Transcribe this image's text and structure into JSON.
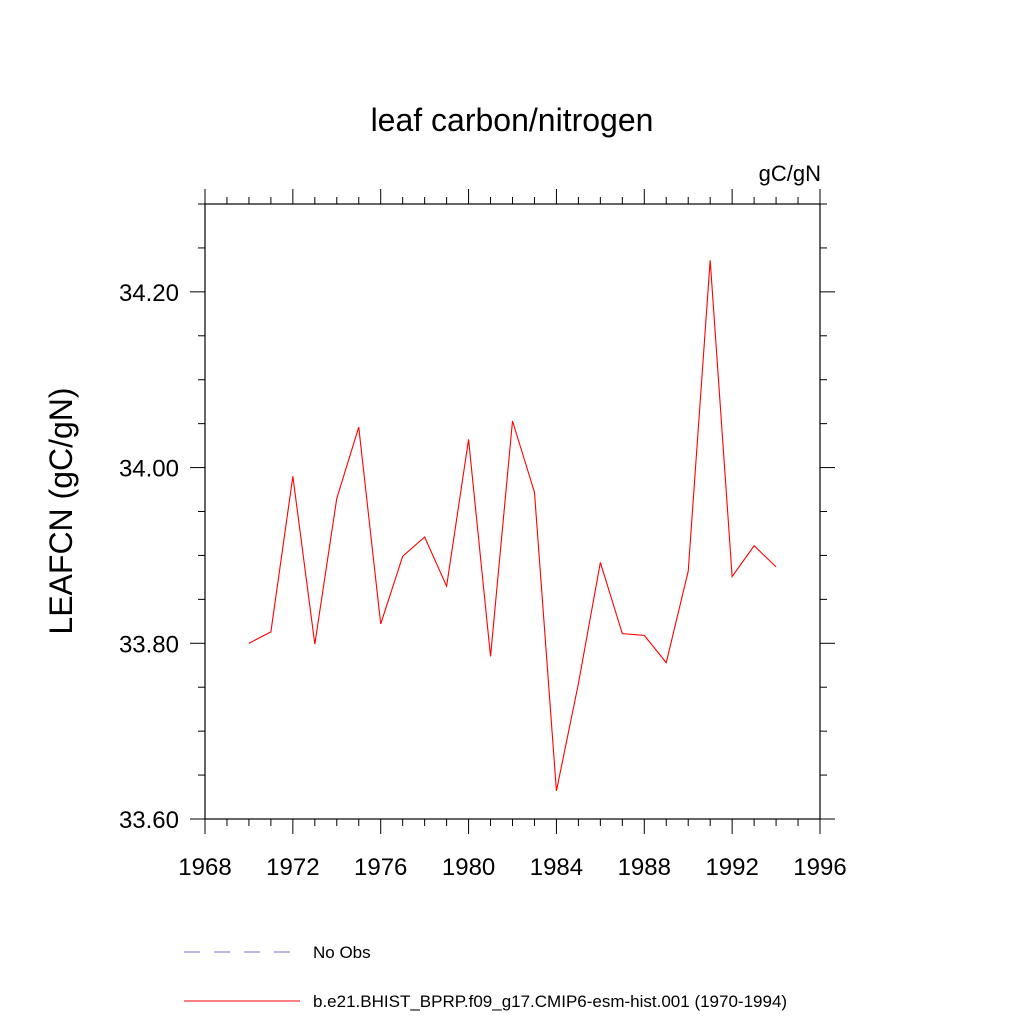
{
  "chart_data": {
    "type": "line",
    "title": "leaf carbon/nitrogen",
    "units_label": "gC/gN",
    "ylabel": "LEAFCN  (gC/gN)",
    "xlabel": "",
    "xlim": [
      1968,
      1996
    ],
    "ylim": [
      33.6,
      34.3
    ],
    "x_major_ticks": [
      1968,
      1972,
      1976,
      1980,
      1984,
      1988,
      1992,
      1996
    ],
    "x_tick_labels": [
      "1968",
      "1972",
      "1976",
      "1980",
      "1984",
      "1988",
      "1992",
      "1996"
    ],
    "y_major_ticks": [
      33.6,
      33.8,
      34.0,
      34.2
    ],
    "y_tick_labels": [
      "33.60",
      "33.80",
      "34.00",
      "34.20"
    ],
    "grid": false,
    "series": [
      {
        "name": "b.e21.BHIST_BPRP.f09_g17.CMIP6-esm-hist.001 (1970-1994)",
        "color": "#ff0000",
        "dash": "solid",
        "x": [
          1970,
          1971,
          1972,
          1973,
          1974,
          1975,
          1976,
          1977,
          1978,
          1979,
          1980,
          1981,
          1982,
          1983,
          1984,
          1985,
          1986,
          1987,
          1988,
          1989,
          1990,
          1991,
          1992,
          1993,
          1994
        ],
        "values": [
          33.8,
          33.813,
          33.99,
          33.799,
          33.965,
          34.046,
          33.822,
          33.899,
          33.921,
          33.865,
          34.032,
          33.785,
          34.053,
          33.972,
          33.632,
          33.754,
          33.892,
          33.811,
          33.809,
          33.778,
          33.882,
          34.236,
          33.876,
          33.911,
          33.887
        ]
      }
    ],
    "legend": [
      {
        "label": "No Obs",
        "color": "#7b68c8",
        "dash": "dashed"
      },
      {
        "label": "b.e21.BHIST_BPRP.f09_g17.CMIP6-esm-hist.001 (1970-1994)",
        "color": "#ff0000",
        "dash": "solid"
      }
    ],
    "legend_position": "bottom"
  }
}
